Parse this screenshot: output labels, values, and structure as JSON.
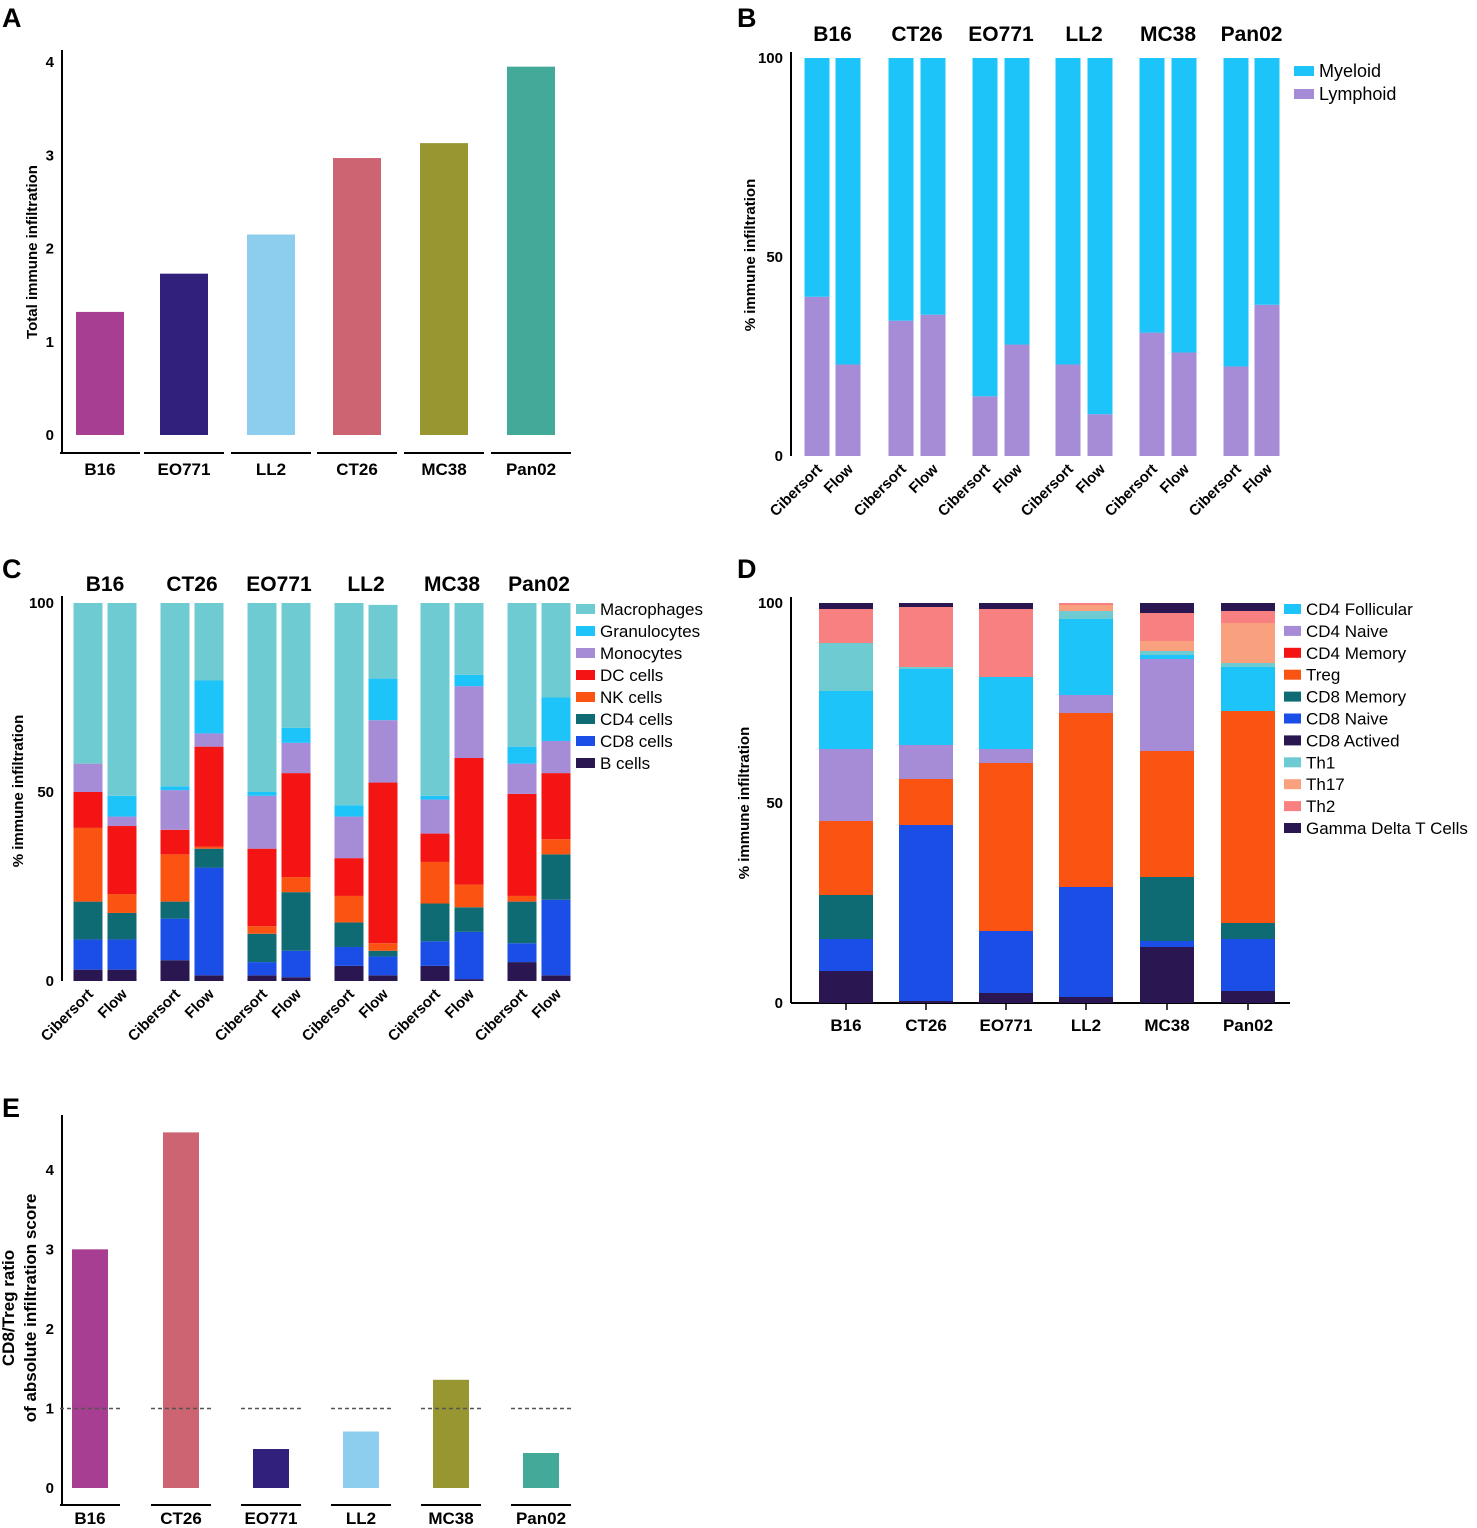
{
  "chart_data": [
    {
      "panel": "A",
      "type": "bar",
      "ylabel": "Total immune infiltration",
      "ylim": [
        0,
        4
      ],
      "yticks": [
        0,
        1,
        2,
        3,
        4
      ],
      "categories": [
        "B16",
        "EO771",
        "LL2",
        "CT26",
        "MC38",
        "Pan02"
      ],
      "values": [
        1.32,
        1.73,
        2.15,
        2.97,
        3.13,
        3.95
      ],
      "colors": [
        "#a73e91",
        "#32207d",
        "#8dcdee",
        "#cc6472",
        "#989631",
        "#43a998"
      ]
    },
    {
      "panel": "B",
      "type": "bar",
      "stacked": true,
      "ylabel": "% immune infiltration",
      "ylim": [
        0,
        100
      ],
      "yticks": [
        0,
        50,
        100
      ],
      "groups": [
        "B16",
        "CT26",
        "EO771",
        "LL2",
        "MC38",
        "Pan02"
      ],
      "methods": [
        "Cibersort",
        "Flow"
      ],
      "series": [
        {
          "name": "Lymphoid",
          "color": "#a68bd6",
          "values": [
            [
              40,
              23
            ],
            [
              34,
              35.5
            ],
            [
              15,
              28
            ],
            [
              23,
              10.5
            ],
            [
              31,
              26
            ],
            [
              22.5,
              38
            ]
          ]
        },
        {
          "name": "Myeloid",
          "color": "#1dc4fa",
          "values": [
            [
              60,
              77
            ],
            [
              66,
              64.5
            ],
            [
              85,
              72
            ],
            [
              77,
              89.5
            ],
            [
              69,
              74
            ],
            [
              77.5,
              62
            ]
          ]
        }
      ],
      "legend": [
        "Myeloid",
        "Lymphoid"
      ]
    },
    {
      "panel": "C",
      "type": "bar",
      "stacked": true,
      "ylabel": "% immune infiltration",
      "ylim": [
        0,
        100
      ],
      "yticks": [
        0,
        50,
        100
      ],
      "groups": [
        "B16",
        "CT26",
        "EO771",
        "LL2",
        "MC38",
        "Pan02"
      ],
      "methods": [
        "Cibersort",
        "Flow"
      ],
      "series": [
        {
          "name": "B cells",
          "color": "#2a1650",
          "values": [
            [
              3,
              3
            ],
            [
              5.5,
              1.5
            ],
            [
              1.5,
              1
            ],
            [
              4,
              1.5
            ],
            [
              4,
              0.5
            ],
            [
              5,
              1.5
            ]
          ]
        },
        {
          "name": "CD8 cells",
          "color": "#1a4ee6",
          "values": [
            [
              8,
              8
            ],
            [
              11,
              28.5
            ],
            [
              3.5,
              7
            ],
            [
              5,
              5
            ],
            [
              6.5,
              12.5
            ],
            [
              5,
              20
            ]
          ]
        },
        {
          "name": "CD4 cells",
          "color": "#0f6b73",
          "values": [
            [
              10,
              7
            ],
            [
              4.5,
              5
            ],
            [
              7.5,
              15.5
            ],
            [
              6.5,
              1.5
            ],
            [
              10,
              6.5
            ],
            [
              11,
              12
            ]
          ]
        },
        {
          "name": "NK cells",
          "color": "#fb5412",
          "values": [
            [
              19.5,
              5
            ],
            [
              12.5,
              0.5
            ],
            [
              2,
              4
            ],
            [
              7,
              2
            ],
            [
              11,
              6
            ],
            [
              1.5,
              4
            ]
          ]
        },
        {
          "name": "DC cells",
          "color": "#f41414",
          "values": [
            [
              9.5,
              18
            ],
            [
              6.5,
              26.5
            ],
            [
              20.5,
              27.5
            ],
            [
              10,
              42.5
            ],
            [
              7.5,
              33.5
            ],
            [
              27,
              17.5
            ]
          ]
        },
        {
          "name": "Monocytes",
          "color": "#a68bd6",
          "values": [
            [
              7.5,
              2.5
            ],
            [
              10.5,
              3.5
            ],
            [
              14,
              8
            ],
            [
              11,
              16.5
            ],
            [
              9,
              19
            ],
            [
              8,
              8.5
            ]
          ]
        },
        {
          "name": "Granulocytes",
          "color": "#1dc4fa",
          "values": [
            [
              0,
              5.5
            ],
            [
              1,
              14
            ],
            [
              1,
              4
            ],
            [
              3,
              11
            ],
            [
              1,
              3
            ],
            [
              4.5,
              11.5
            ]
          ]
        },
        {
          "name": "Macrophages",
          "color": "#6fcbd2",
          "values": [
            [
              42.5,
              51
            ],
            [
              48.5,
              20.5
            ],
            [
              50,
              33
            ],
            [
              53.5,
              19.5
            ],
            [
              51,
              19
            ],
            [
              38,
              25
            ]
          ]
        }
      ],
      "legend": [
        "Macrophages",
        "Granulocytes",
        "Monocytes",
        "DC cells",
        "NK cells",
        "CD4 cells",
        "CD8 cells",
        "B cells"
      ]
    },
    {
      "panel": "D",
      "type": "bar",
      "stacked": true,
      "ylabel": "% immune infiltration",
      "ylim": [
        0,
        100
      ],
      "yticks": [
        0,
        50,
        100
      ],
      "categories": [
        "B16",
        "CT26",
        "EO771",
        "LL2",
        "MC38",
        "Pan02"
      ],
      "series": [
        {
          "name": "CD8 Actived",
          "color": "#2a1650",
          "values": [
            8,
            0.5,
            2.5,
            1.5,
            14,
            3
          ]
        },
        {
          "name": "CD8 Naive",
          "color": "#1a4ee6",
          "values": [
            8,
            44,
            15.5,
            27.5,
            1.5,
            13
          ]
        },
        {
          "name": "CD8 Memory",
          "color": "#0f6b73",
          "values": [
            11,
            0,
            0,
            0,
            16,
            4
          ]
        },
        {
          "name": "Treg",
          "color": "#fb5412",
          "values": [
            18.5,
            11.5,
            42,
            43.5,
            31.5,
            53
          ]
        },
        {
          "name": "CD4 Memory",
          "color": "#f41414",
          "values": [
            0,
            0,
            0,
            0,
            0,
            0
          ]
        },
        {
          "name": "CD4 Naive",
          "color": "#a68bd6",
          "values": [
            18,
            8.5,
            3.5,
            4.5,
            23,
            0
          ]
        },
        {
          "name": "CD4 Follicular",
          "color": "#1dc4fa",
          "values": [
            14.5,
            19,
            18,
            19,
            1,
            11
          ]
        },
        {
          "name": "Th1",
          "color": "#6fcbd2",
          "values": [
            12,
            0.5,
            0,
            2,
            1,
            1
          ]
        },
        {
          "name": "Th17",
          "color": "#f9a07f",
          "values": [
            0,
            0,
            0,
            1.5,
            2.5,
            10
          ]
        },
        {
          "name": "Th2",
          "color": "#f98080",
          "values": [
            8.5,
            15,
            17,
            0.5,
            7,
            3
          ]
        },
        {
          "name": "Gamma Delta T Cells",
          "color": "#2a1650",
          "values": [
            1.5,
            1,
            1.5,
            0,
            2.5,
            2
          ]
        }
      ],
      "legend": [
        "CD4 Follicular",
        "CD4 Naive",
        "CD4 Memory",
        "Treg",
        "CD8 Memory",
        "CD8 Naive",
        "CD8 Actived",
        "Th1",
        "Th17",
        "Th2",
        "Gamma Delta T Cells"
      ]
    },
    {
      "panel": "E",
      "type": "bar",
      "ylabel": [
        "CD8/Treg ratio",
        "of absolute infiltration score"
      ],
      "ylim": [
        0,
        4.5
      ],
      "yticks": [
        0,
        1,
        2,
        3,
        4
      ],
      "reference_line": 1,
      "categories": [
        "B16",
        "CT26",
        "EO771",
        "LL2",
        "MC38",
        "Pan02"
      ],
      "values": [
        3.0,
        4.47,
        0.49,
        0.71,
        1.36,
        0.44
      ],
      "colors": [
        "#a73e91",
        "#cc6472",
        "#32207d",
        "#8dcdee",
        "#989631",
        "#43a998"
      ]
    }
  ]
}
